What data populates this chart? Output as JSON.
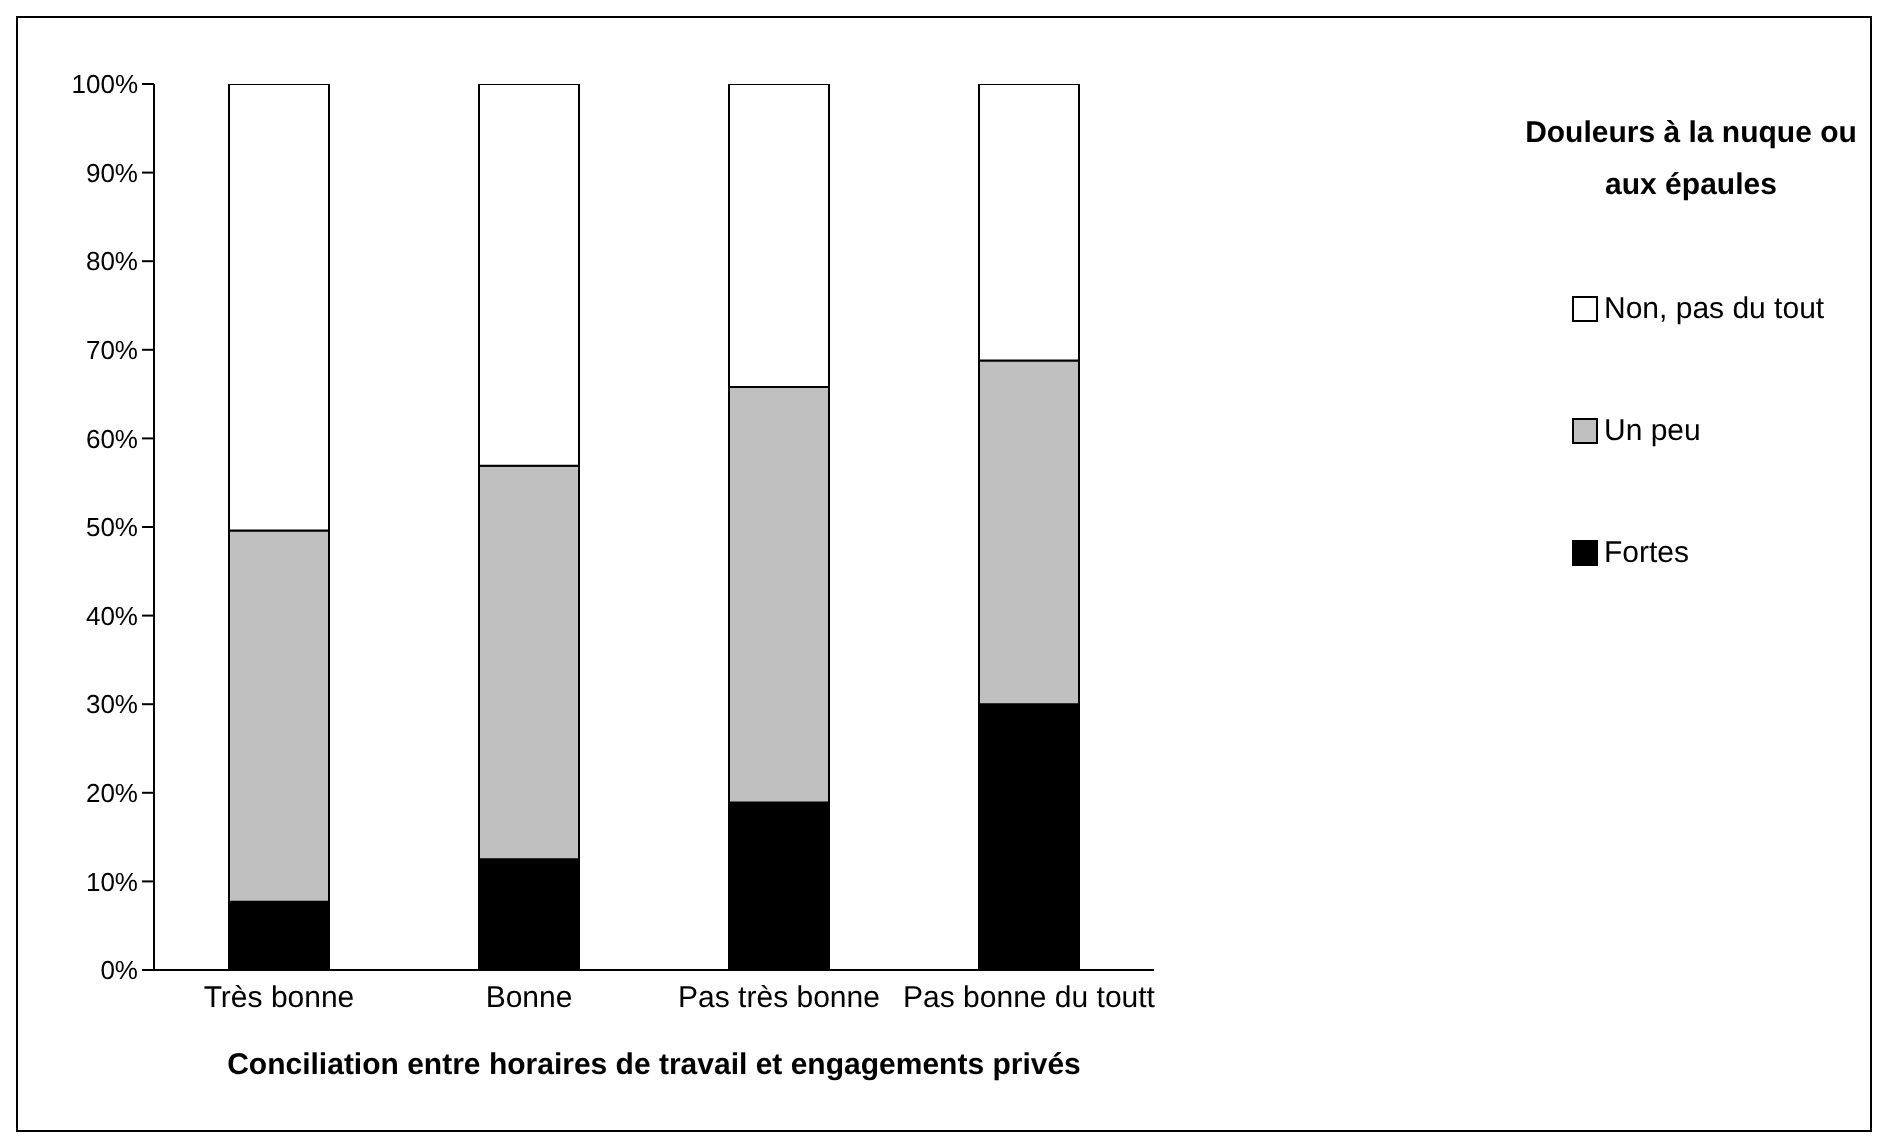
{
  "chart_data": {
    "type": "bar",
    "stacked": true,
    "xlabel": "Conciliation entre horaires de travail et engagements privés",
    "legend_title": "Douleurs à la nuque ou aux épaules",
    "legend": "right",
    "grid": false,
    "categories": [
      "Très bonne",
      "Bonne",
      "Pas très bonne",
      "Pas bonne du toutt"
    ],
    "series": [
      {
        "name": "Fortes",
        "color": "#000000",
        "values": [
          7.7,
          12.5,
          18.9,
          30.0
        ]
      },
      {
        "name": "Un peu",
        "color": "#c0c0c0",
        "values": [
          41.9,
          44.4,
          46.9,
          38.8
        ]
      },
      {
        "name": "Non, pas du tout",
        "color": "#ffffff",
        "values": [
          50.4,
          43.1,
          34.2,
          31.2
        ]
      }
    ],
    "ylim": [
      0,
      100
    ],
    "yticks": [
      {
        "value": 0,
        "label": "0%"
      },
      {
        "value": 10,
        "label": "10%"
      },
      {
        "value": 20,
        "label": "20%"
      },
      {
        "value": 30,
        "label": "30%"
      },
      {
        "value": 40,
        "label": "40%"
      },
      {
        "value": 50,
        "label": "50%"
      },
      {
        "value": 60,
        "label": "60%"
      },
      {
        "value": 70,
        "label": "70%"
      },
      {
        "value": 80,
        "label": "80%"
      },
      {
        "value": 90,
        "label": "90%"
      },
      {
        "value": 100,
        "label": "100%"
      }
    ]
  }
}
